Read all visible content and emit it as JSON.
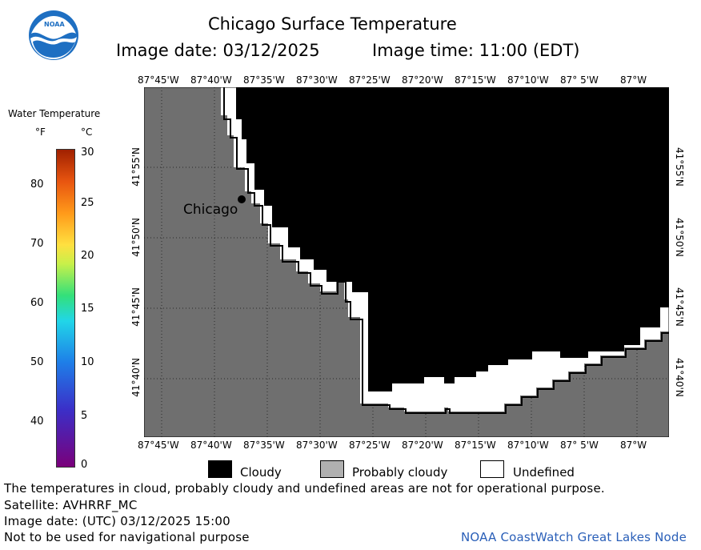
{
  "header": {
    "title": "Chicago Surface Temperature",
    "image_date_label": "Image date: 03/12/2025",
    "image_time_label": "Image time: 11:00 (EDT)"
  },
  "logo": {
    "text": "NOAA"
  },
  "legend_scale": {
    "title": "Water Temperature",
    "unit_f": "°F",
    "unit_c": "°C",
    "f_ticks": [
      "80",
      "70",
      "60",
      "50",
      "40"
    ],
    "c_ticks": [
      "30",
      "25",
      "20",
      "15",
      "10",
      "5",
      "0"
    ],
    "c_range": [
      0,
      30
    ]
  },
  "map": {
    "lon_labels": [
      "87°45'W",
      "87°40'W",
      "87°35'W",
      "87°30'W",
      "87°25'W",
      "87°20'W",
      "87°15'W",
      "87°10'W",
      "87° 5'W",
      "87°W"
    ],
    "lat_labels": [
      "41°55'N",
      "41°50'N",
      "41°45'N",
      "41°40'N"
    ],
    "city_label": "Chicago",
    "colors": {
      "land": "#6f6f6f",
      "cloudy": "#000000",
      "undefined": "#ffffff"
    }
  },
  "category_legend": {
    "cloudy": "Cloudy",
    "probably_cloudy": "Probably cloudy",
    "undefined": "Undefined"
  },
  "footer": {
    "disclaimer": "The temperatures in cloud, probably cloudy and undefined areas are not for operational purpose.",
    "satellite": "Satellite: AVHRRF_MC",
    "utc_date": "Image date: (UTC) 03/12/2025  15:00",
    "nav_note": "Not to be used for navigational purpose",
    "credit": "NOAA CoastWatch Great Lakes Node"
  }
}
